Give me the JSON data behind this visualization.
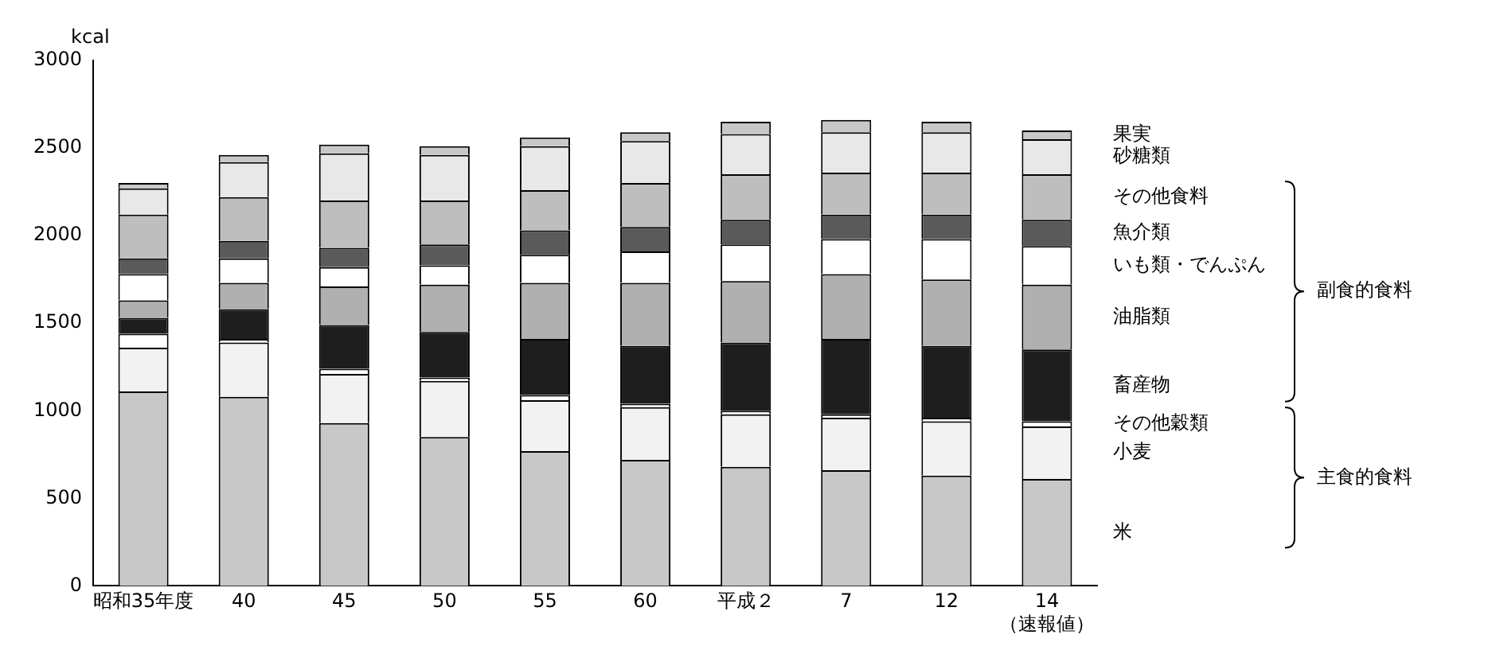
{
  "chart_data": {
    "type": "bar",
    "stacked": true,
    "ylabel": "kcal",
    "ylim": [
      0,
      3000
    ],
    "yticks": [
      0,
      500,
      1000,
      1500,
      2000,
      2500,
      3000
    ],
    "grid": false,
    "legend": "right",
    "categories": [
      "昭和35年度",
      "40",
      "45",
      "50",
      "55",
      "60",
      "平成２",
      "7",
      "12",
      "14\n（速報値）"
    ],
    "series": [
      {
        "name": "米",
        "color": "#c8c8c8",
        "values": [
          1110,
          1080,
          930,
          850,
          770,
          720,
          680,
          660,
          630,
          610
        ]
      },
      {
        "name": "小麦",
        "color": "#f2f2f2",
        "values": [
          250,
          310,
          280,
          320,
          290,
          300,
          300,
          300,
          310,
          300
        ]
      },
      {
        "name": "その他穀類",
        "color": "#ffffff",
        "values": [
          80,
          20,
          30,
          20,
          30,
          20,
          20,
          20,
          20,
          30
        ]
      },
      {
        "name": "畜産物",
        "color": "#1e1e1e",
        "values": [
          90,
          170,
          250,
          260,
          320,
          330,
          390,
          430,
          410,
          410
        ]
      },
      {
        "name": "油脂類",
        "color": "#b0b0b0",
        "values": [
          100,
          150,
          220,
          270,
          320,
          360,
          350,
          370,
          380,
          370
        ]
      },
      {
        "name": "いも類・でんぷん",
        "color": "#ffffff",
        "values": [
          150,
          140,
          110,
          110,
          160,
          180,
          210,
          200,
          230,
          220
        ]
      },
      {
        "name": "魚介類",
        "color": "#5a5a5a",
        "values": [
          90,
          100,
          110,
          120,
          140,
          140,
          140,
          140,
          140,
          150
        ]
      },
      {
        "name": "その他食料",
        "color": "#bebebe",
        "values": [
          250,
          250,
          270,
          250,
          230,
          250,
          260,
          240,
          240,
          260
        ]
      },
      {
        "name": "砂糖類",
        "color": "#e8e8e8",
        "values": [
          150,
          200,
          270,
          260,
          250,
          240,
          230,
          230,
          230,
          200
        ]
      },
      {
        "name": "果実",
        "color": "#c8c8c8",
        "values": [
          30,
          40,
          50,
          50,
          50,
          50,
          70,
          70,
          60,
          50
        ]
      }
    ],
    "annotations": [
      "副食的食料",
      "主食的食料"
    ]
  }
}
